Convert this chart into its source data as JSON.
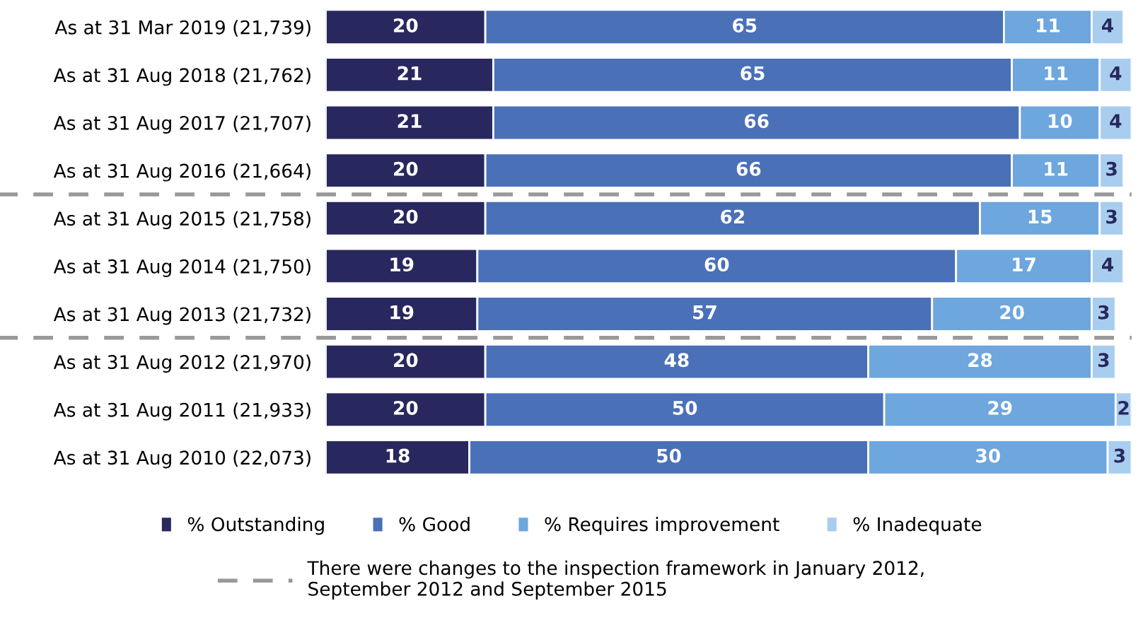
{
  "chart_data": {
    "type": "bar",
    "orientation": "horizontal",
    "stacked": true,
    "data_labels": true,
    "tick_labels": "y",
    "legend": "bottom",
    "grid": false,
    "xlim": [
      0,
      101
    ],
    "annotations": [
      "There were changes to the inspection framework in January 2012,\nSeptember 2012 and September 2015"
    ],
    "categories": [
      "As at 31 Mar 2019 (21,739)",
      "As at 31 Aug 2018 (21,762)",
      "As at 31 Aug 2017 (21,707)",
      "As at 31 Aug 2016 (21,664)",
      "As at 31 Aug 2015 (21,758)",
      "As at 31 Aug 2014 (21,750)",
      "As at 31 Aug 2013 (21,732)",
      "As at 31 Aug 2012 (21,970)",
      "As at 31 Aug 2011 (21,933)",
      "As at 31 Aug 2010 (22,073)"
    ],
    "series": [
      {
        "name": "% Outstanding",
        "color": "#28285e",
        "values": [
          20,
          21,
          21,
          20,
          20,
          19,
          19,
          20,
          20,
          18
        ]
      },
      {
        "name": "% Good",
        "color": "#4a70b8",
        "values": [
          65,
          65,
          66,
          66,
          62,
          60,
          57,
          48,
          50,
          50
        ]
      },
      {
        "name": "% Requires improvement",
        "color": "#6ea6de",
        "values": [
          11,
          11,
          10,
          11,
          15,
          17,
          20,
          28,
          29,
          30
        ]
      },
      {
        "name": "% Inadequate",
        "color": "#a9cdee",
        "values": [
          4,
          4,
          4,
          3,
          3,
          4,
          3,
          3,
          2,
          3
        ]
      }
    ]
  }
}
